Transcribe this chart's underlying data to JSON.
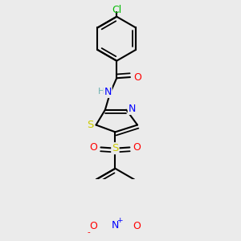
{
  "background_color": "#ebebeb",
  "bond_color": "#000000",
  "bond_width": 1.5,
  "atom_colors": {
    "C": "#000000",
    "H": "#6ab0b0",
    "N": "#0000ff",
    "O": "#ff0000",
    "S": "#cccc00",
    "Cl": "#00bb00"
  },
  "font_size": 8.5,
  "scale": 0.38
}
